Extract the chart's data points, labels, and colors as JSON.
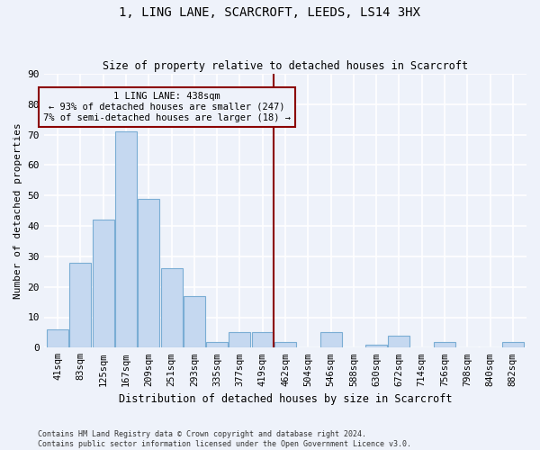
{
  "title": "1, LING LANE, SCARCROFT, LEEDS, LS14 3HX",
  "subtitle": "Size of property relative to detached houses in Scarcroft",
  "xlabel": "Distribution of detached houses by size in Scarcroft",
  "ylabel": "Number of detached properties",
  "categories": [
    "41sqm",
    "83sqm",
    "125sqm",
    "167sqm",
    "209sqm",
    "251sqm",
    "293sqm",
    "335sqm",
    "377sqm",
    "419sqm",
    "462sqm",
    "504sqm",
    "546sqm",
    "588sqm",
    "630sqm",
    "672sqm",
    "714sqm",
    "756sqm",
    "798sqm",
    "840sqm",
    "882sqm"
  ],
  "values": [
    6,
    28,
    42,
    71,
    49,
    26,
    17,
    2,
    5,
    5,
    2,
    0,
    5,
    0,
    1,
    4,
    0,
    2,
    0,
    0,
    2
  ],
  "bar_color": "#c5d8f0",
  "bar_edge_color": "#7aadd4",
  "vline_x_index": 9.5,
  "vline_color": "#8b0000",
  "annotation_text": "1 LING LANE: 438sqm\n← 93% of detached houses are smaller (247)\n7% of semi-detached houses are larger (18) →",
  "annotation_box_color": "#8b0000",
  "ylim": [
    0,
    90
  ],
  "yticks": [
    0,
    10,
    20,
    30,
    40,
    50,
    60,
    70,
    80,
    90
  ],
  "bg_color": "#eef2fa",
  "grid_color": "#ffffff",
  "footer_line1": "Contains HM Land Registry data © Crown copyright and database right 2024.",
  "footer_line2": "Contains public sector information licensed under the Open Government Licence v3.0."
}
